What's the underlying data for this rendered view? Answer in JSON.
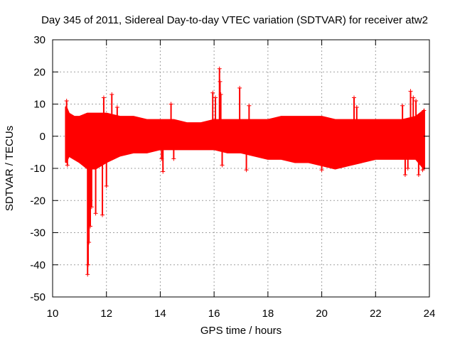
{
  "chart_data": {
    "type": "scatter",
    "title": "Day 345 of 2011, Sidereal Day-to-day VTEC variation (SDTVAR) for receiver atw2",
    "xlabel": "GPS time / hours",
    "ylabel": "SDTVAR / TECUs",
    "xlim": [
      10,
      24
    ],
    "ylim": [
      -50,
      30
    ],
    "grid": true,
    "marker": "+",
    "color": "#ff0000",
    "x_ticks": [
      10,
      12,
      14,
      16,
      18,
      20,
      22,
      24
    ],
    "x_tick_labels": [
      "10",
      "12",
      "14",
      "16",
      "18",
      "20",
      "22",
      "24"
    ],
    "y_ticks": [
      30,
      20,
      10,
      0,
      -10,
      -20,
      -30,
      -40,
      -50
    ],
    "y_tick_labels": [
      "30",
      "20",
      "10",
      "0",
      "-10",
      "-20",
      "-30",
      "-40",
      "-50"
    ],
    "band": {
      "description_x": [
        10.5,
        10.6,
        10.8,
        11.0,
        11.3,
        11.6,
        12.0,
        12.5,
        13.0,
        13.5,
        14.0,
        14.5,
        15.0,
        15.5,
        16.0,
        16.5,
        17.0,
        17.5,
        18.0,
        18.5,
        19.0,
        19.5,
        20.0,
        20.5,
        21.0,
        21.5,
        22.0,
        22.5,
        23.0,
        23.5,
        23.8
      ],
      "upper": [
        9,
        7,
        6,
        6,
        7,
        7,
        7,
        6,
        6,
        5,
        5,
        5,
        4,
        4,
        5,
        5,
        5,
        5,
        5,
        6,
        6,
        6,
        6,
        5,
        5,
        5,
        5,
        5,
        5,
        6,
        8
      ],
      "lower": [
        -8,
        -6,
        -7,
        -8,
        -10,
        -10,
        -8,
        -6,
        -5,
        -5,
        -4,
        -4,
        -4,
        -4,
        -4,
        -5,
        -5,
        -6,
        -7,
        -7,
        -8,
        -8,
        -9,
        -10,
        -9,
        -8,
        -7,
        -7,
        -7,
        -7,
        -10
      ]
    },
    "outliers": [
      {
        "x": 10.52,
        "y": 11
      },
      {
        "x": 10.55,
        "y": -9
      },
      {
        "x": 11.3,
        "y": -43
      },
      {
        "x": 11.32,
        "y": -40
      },
      {
        "x": 11.35,
        "y": -33
      },
      {
        "x": 11.4,
        "y": -28
      },
      {
        "x": 11.45,
        "y": -22
      },
      {
        "x": 11.6,
        "y": -24
      },
      {
        "x": 11.85,
        "y": -24.5
      },
      {
        "x": 12.0,
        "y": -15.5
      },
      {
        "x": 11.9,
        "y": 12
      },
      {
        "x": 12.2,
        "y": 13
      },
      {
        "x": 12.4,
        "y": 9
      },
      {
        "x": 14.1,
        "y": -11
      },
      {
        "x": 14.05,
        "y": -7
      },
      {
        "x": 14.5,
        "y": -7
      },
      {
        "x": 14.4,
        "y": 10
      },
      {
        "x": 15.95,
        "y": 13.5
      },
      {
        "x": 16.05,
        "y": 12
      },
      {
        "x": 16.2,
        "y": 21
      },
      {
        "x": 16.22,
        "y": 17
      },
      {
        "x": 16.25,
        "y": 13
      },
      {
        "x": 16.3,
        "y": -9
      },
      {
        "x": 16.95,
        "y": 15
      },
      {
        "x": 17.2,
        "y": -10.5
      },
      {
        "x": 17.3,
        "y": 9.5
      },
      {
        "x": 20.0,
        "y": -10.5
      },
      {
        "x": 21.2,
        "y": 12
      },
      {
        "x": 21.3,
        "y": 9
      },
      {
        "x": 23.0,
        "y": 9.5
      },
      {
        "x": 23.3,
        "y": 14
      },
      {
        "x": 23.4,
        "y": 12
      },
      {
        "x": 23.5,
        "y": 11
      },
      {
        "x": 23.6,
        "y": -12
      },
      {
        "x": 23.75,
        "y": -10.5
      },
      {
        "x": 23.8,
        "y": 8
      },
      {
        "x": 23.1,
        "y": -12
      },
      {
        "x": 23.2,
        "y": -10
      }
    ]
  }
}
